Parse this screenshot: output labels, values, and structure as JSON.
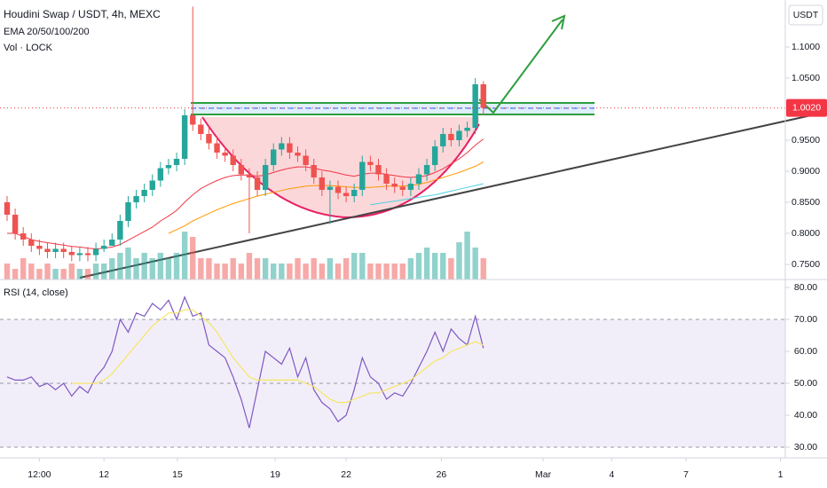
{
  "chart_data": [
    {
      "type": "candlestick",
      "title": "Houdini Swap / USDT, 4h, MEXC",
      "indicators": [
        "EMA 20/50/100/200",
        "Vol · LOCK"
      ],
      "y_axis_label": "USDT",
      "up_color": "#26a69a",
      "down_color": "#ef5350",
      "xlim": [
        -0.88,
        96.4
      ],
      "ylim": [
        0.7257,
        1.1757
      ],
      "yticks": [
        {
          "value": 1.1,
          "label": "1.1000"
        },
        {
          "value": 1.05,
          "label": "1.0500"
        },
        {
          "value": 0.95,
          "label": "0.9500"
        },
        {
          "value": 0.9,
          "label": "0.9000"
        },
        {
          "value": 0.85,
          "label": "0.8500"
        },
        {
          "value": 0.8,
          "label": "0.8000"
        },
        {
          "value": 0.75,
          "label": "0.7500"
        }
      ],
      "last_price": {
        "value": 1.002,
        "label": "1.0020",
        "color": "#f23645"
      },
      "open": [
        0.85,
        0.83,
        0.8,
        0.79,
        0.78,
        0.775,
        0.77,
        0.775,
        0.77,
        0.765,
        0.768,
        0.765,
        0.775,
        0.78,
        0.79,
        0.82,
        0.85,
        0.86,
        0.87,
        0.885,
        0.905,
        0.91,
        0.92,
        0.99,
        0.975,
        0.96,
        0.945,
        0.93,
        0.925,
        0.91,
        0.895,
        0.89,
        0.87,
        0.91,
        0.935,
        0.945,
        0.93,
        0.925,
        0.91,
        0.89,
        0.87,
        0.875,
        0.865,
        0.86,
        0.87,
        0.915,
        0.91,
        0.895,
        0.88,
        0.875,
        0.87,
        0.88,
        0.895,
        0.91,
        0.94,
        0.96,
        0.95,
        0.965,
        0.97,
        1.04
      ],
      "high": [
        0.86,
        0.84,
        0.81,
        0.8,
        0.79,
        0.785,
        0.785,
        0.785,
        0.78,
        0.778,
        0.778,
        0.785,
        0.79,
        0.8,
        0.83,
        0.86,
        0.87,
        0.88,
        0.895,
        0.915,
        0.92,
        0.93,
        1.0,
        1.165,
        0.985,
        0.97,
        0.955,
        0.94,
        0.935,
        0.92,
        0.905,
        0.9,
        0.92,
        0.945,
        0.955,
        0.955,
        0.94,
        0.935,
        0.92,
        0.9,
        0.885,
        0.885,
        0.875,
        0.88,
        0.925,
        0.925,
        0.92,
        0.905,
        0.89,
        0.885,
        0.89,
        0.905,
        0.92,
        0.95,
        0.97,
        0.97,
        0.975,
        0.98,
        1.05,
        1.045
      ],
      "low": [
        0.82,
        0.79,
        0.78,
        0.77,
        0.765,
        0.76,
        0.76,
        0.76,
        0.755,
        0.755,
        0.755,
        0.755,
        0.77,
        0.78,
        0.78,
        0.81,
        0.84,
        0.85,
        0.86,
        0.875,
        0.895,
        0.9,
        0.91,
        0.965,
        0.95,
        0.935,
        0.92,
        0.915,
        0.9,
        0.885,
        0.8,
        0.86,
        0.86,
        0.9,
        0.925,
        0.92,
        0.915,
        0.9,
        0.88,
        0.86,
        0.815,
        0.855,
        0.85,
        0.85,
        0.86,
        0.9,
        0.885,
        0.87,
        0.865,
        0.86,
        0.86,
        0.87,
        0.885,
        0.9,
        0.93,
        0.94,
        0.94,
        0.955,
        0.96,
        0.99
      ],
      "close": [
        0.83,
        0.8,
        0.79,
        0.78,
        0.775,
        0.77,
        0.775,
        0.77,
        0.765,
        0.768,
        0.765,
        0.775,
        0.78,
        0.79,
        0.82,
        0.85,
        0.86,
        0.87,
        0.885,
        0.905,
        0.91,
        0.92,
        0.99,
        0.975,
        0.96,
        0.945,
        0.93,
        0.925,
        0.91,
        0.895,
        0.89,
        0.87,
        0.91,
        0.935,
        0.945,
        0.93,
        0.925,
        0.91,
        0.89,
        0.87,
        0.875,
        0.865,
        0.86,
        0.87,
        0.915,
        0.91,
        0.895,
        0.88,
        0.875,
        0.87,
        0.88,
        0.895,
        0.91,
        0.94,
        0.96,
        0.95,
        0.965,
        0.97,
        1.04,
        1.002
      ],
      "volume": [
        3,
        2,
        4,
        3,
        2,
        3,
        2,
        2,
        3,
        2,
        2,
        3,
        3,
        4,
        5,
        6,
        4,
        5,
        4,
        5,
        4,
        5,
        9,
        8,
        4,
        4,
        3,
        3,
        4,
        3,
        5,
        4,
        4,
        3,
        3,
        3,
        4,
        3,
        4,
        3,
        4,
        3,
        4,
        5,
        5,
        3,
        3,
        3,
        3,
        3,
        4,
        5,
        6,
        5,
        5,
        4,
        7,
        9,
        6,
        4
      ],
      "ema_lines": [
        {
          "color": "#f23645",
          "values": [
            0.8,
            0.8,
            0.795,
            0.79,
            0.787,
            0.785,
            0.783,
            0.781,
            0.779,
            0.778,
            0.776,
            0.775,
            0.776,
            0.778,
            0.782,
            0.789,
            0.796,
            0.803,
            0.81,
            0.82,
            0.828,
            0.837,
            0.85,
            0.862,
            0.872,
            0.879,
            0.885,
            0.89,
            0.893,
            0.894,
            0.894,
            0.892,
            0.894,
            0.898,
            0.902,
            0.905,
            0.907,
            0.907,
            0.905,
            0.902,
            0.9,
            0.897,
            0.894,
            0.892,
            0.895,
            0.897,
            0.897,
            0.895,
            0.893,
            0.891,
            0.89,
            0.891,
            0.893,
            0.898,
            0.904,
            0.912,
            0.92,
            0.93,
            0.942,
            0.952
          ]
        },
        {
          "color": "#ff9800",
          "values": [
            null,
            null,
            null,
            null,
            null,
            null,
            null,
            null,
            null,
            null,
            null,
            null,
            null,
            null,
            null,
            null,
            null,
            null,
            null,
            null,
            0.8,
            0.806,
            0.812,
            0.82,
            0.826,
            0.832,
            0.838,
            0.843,
            0.848,
            0.852,
            0.856,
            0.86,
            0.863,
            0.866,
            0.869,
            0.872,
            0.874,
            0.876,
            0.877,
            0.877,
            0.877,
            0.876,
            0.875,
            0.874,
            0.874,
            0.874,
            0.875,
            0.876,
            0.876,
            0.876,
            0.877,
            0.879,
            0.882,
            0.886,
            0.89,
            0.894,
            0.898,
            0.903,
            0.908,
            0.915
          ]
        },
        {
          "color": "#4dd0e1",
          "values": [
            null,
            null,
            null,
            null,
            null,
            null,
            null,
            null,
            null,
            null,
            null,
            null,
            null,
            null,
            null,
            null,
            null,
            null,
            null,
            null,
            null,
            null,
            null,
            null,
            null,
            null,
            null,
            null,
            null,
            null,
            null,
            null,
            null,
            null,
            null,
            null,
            null,
            null,
            null,
            null,
            null,
            null,
            null,
            null,
            null,
            0.846,
            0.848,
            0.85,
            0.852,
            0.854,
            0.856,
            0.858,
            0.86,
            0.862,
            0.865,
            0.868,
            0.871,
            0.874,
            0.877,
            0.88
          ]
        }
      ]
    },
    {
      "type": "line",
      "title": "RSI (14, close)",
      "xlim": [
        -0.88,
        96.4
      ],
      "ylim": [
        26.67,
        82.5
      ],
      "xticks": [
        {
          "value": 4,
          "label": "12:00"
        },
        {
          "value": 12,
          "label": "12"
        },
        {
          "value": 21.1,
          "label": "15"
        },
        {
          "value": 33.2,
          "label": "19"
        },
        {
          "value": 42,
          "label": "22"
        },
        {
          "value": 53.8,
          "label": "26"
        },
        {
          "value": 66.4,
          "label": "Mar"
        },
        {
          "value": 74.9,
          "label": "4"
        },
        {
          "value": 84.1,
          "label": "7"
        },
        {
          "value": 95.8,
          "label": "1"
        }
      ],
      "yticks": [
        {
          "value": 80,
          "label": "80.00"
        },
        {
          "value": 70,
          "label": "70.00"
        },
        {
          "value": 60,
          "label": "60.00"
        },
        {
          "value": 50,
          "label": "50.00"
        },
        {
          "value": 40,
          "label": "40.00"
        },
        {
          "value": 30,
          "label": "30.00"
        }
      ],
      "series": [
        {
          "color": "#7e57c2",
          "values": [
            52,
            51,
            51,
            52,
            49,
            50,
            48,
            50,
            46,
            49,
            47,
            52,
            55,
            60,
            70,
            66,
            72,
            71,
            75,
            73,
            76,
            70,
            77,
            71,
            72,
            62,
            60,
            58,
            52,
            45,
            36,
            48,
            60,
            58,
            56,
            61,
            52,
            58,
            48,
            44,
            42,
            38,
            40,
            48,
            58,
            52,
            50,
            45,
            47,
            46,
            50,
            55,
            60,
            66,
            60,
            67,
            64,
            62,
            71,
            61
          ]
        },
        {
          "color": "#f5e663",
          "values": [
            null,
            null,
            null,
            null,
            null,
            null,
            null,
            null,
            50,
            50,
            50,
            50,
            51,
            53,
            56,
            59,
            62,
            65,
            68,
            70,
            72,
            72,
            73,
            73,
            71,
            69,
            66,
            62,
            58,
            55,
            52,
            51,
            51,
            51,
            51,
            51,
            51,
            50,
            49,
            47,
            45,
            44,
            44,
            45,
            46,
            47,
            47,
            48,
            49,
            50,
            51,
            53,
            55,
            57,
            58,
            60,
            61,
            62,
            63,
            62
          ]
        }
      ]
    }
  ]
}
